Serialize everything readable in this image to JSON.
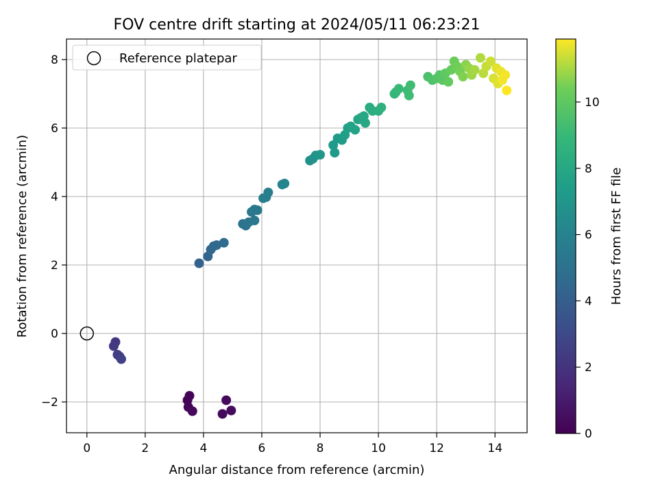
{
  "chart_data": {
    "type": "scatter",
    "title": "FOV centre drift starting at 2024/05/11 06:23:21",
    "xlabel": "Angular distance from reference (arcmin)",
    "ylabel": "Rotation from reference (arcmin)",
    "xlim": [
      -0.7,
      15.1
    ],
    "ylim": [
      -2.9,
      8.6
    ],
    "x_ticks": [
      0,
      2,
      4,
      6,
      8,
      10,
      12,
      14
    ],
    "y_ticks": [
      -2,
      0,
      2,
      4,
      6,
      8
    ],
    "grid": true,
    "legend": {
      "position": "top-left",
      "entries": [
        "Reference platepar"
      ]
    },
    "reference_point": {
      "x": 0,
      "y": 0,
      "label": "Reference platepar",
      "marker": "open-circle"
    },
    "colorbar": {
      "label": "Hours from first FF file",
      "range": [
        0,
        11.9
      ],
      "ticks": [
        0,
        2,
        4,
        6,
        8,
        10
      ],
      "colormap": "viridis"
    },
    "points": [
      {
        "x": 3.45,
        "y": -1.95,
        "c": 0.1
      },
      {
        "x": 3.52,
        "y": -1.82,
        "c": 0.15
      },
      {
        "x": 3.48,
        "y": -2.15,
        "c": 0.2
      },
      {
        "x": 3.62,
        "y": -2.27,
        "c": 0.25
      },
      {
        "x": 4.65,
        "y": -2.35,
        "c": 0.3
      },
      {
        "x": 4.78,
        "y": -1.95,
        "c": 0.35
      },
      {
        "x": 4.95,
        "y": -2.25,
        "c": 0.4
      },
      {
        "x": 0.98,
        "y": -0.25,
        "c": 2.2
      },
      {
        "x": 0.92,
        "y": -0.37,
        "c": 2.3
      },
      {
        "x": 1.05,
        "y": -0.62,
        "c": 2.4
      },
      {
        "x": 1.12,
        "y": -0.67,
        "c": 2.5
      },
      {
        "x": 1.18,
        "y": -0.75,
        "c": 2.6
      },
      {
        "x": 3.85,
        "y": 2.05,
        "c": 4.2
      },
      {
        "x": 4.15,
        "y": 2.25,
        "c": 4.3
      },
      {
        "x": 4.25,
        "y": 2.45,
        "c": 4.4
      },
      {
        "x": 4.35,
        "y": 2.55,
        "c": 4.5
      },
      {
        "x": 4.45,
        "y": 2.58,
        "c": 4.6
      },
      {
        "x": 4.7,
        "y": 2.65,
        "c": 4.7
      },
      {
        "x": 5.35,
        "y": 3.2,
        "c": 5.0
      },
      {
        "x": 5.45,
        "y": 3.15,
        "c": 5.1
      },
      {
        "x": 5.55,
        "y": 3.25,
        "c": 5.2
      },
      {
        "x": 5.75,
        "y": 3.3,
        "c": 5.3
      },
      {
        "x": 5.65,
        "y": 3.55,
        "c": 5.3
      },
      {
        "x": 5.75,
        "y": 3.62,
        "c": 5.4
      },
      {
        "x": 5.85,
        "y": 3.6,
        "c": 5.4
      },
      {
        "x": 6.05,
        "y": 3.95,
        "c": 5.6
      },
      {
        "x": 6.15,
        "y": 3.98,
        "c": 5.7
      },
      {
        "x": 6.22,
        "y": 4.12,
        "c": 5.8
      },
      {
        "x": 6.7,
        "y": 4.35,
        "c": 6.0
      },
      {
        "x": 6.78,
        "y": 4.38,
        "c": 6.1
      },
      {
        "x": 7.65,
        "y": 5.05,
        "c": 6.7
      },
      {
        "x": 7.75,
        "y": 5.1,
        "c": 6.8
      },
      {
        "x": 7.85,
        "y": 5.2,
        "c": 6.9
      },
      {
        "x": 8.0,
        "y": 5.22,
        "c": 7.0
      },
      {
        "x": 8.45,
        "y": 5.5,
        "c": 7.2
      },
      {
        "x": 8.5,
        "y": 5.28,
        "c": 7.2
      },
      {
        "x": 8.6,
        "y": 5.7,
        "c": 7.3
      },
      {
        "x": 8.75,
        "y": 5.65,
        "c": 7.4
      },
      {
        "x": 8.85,
        "y": 5.8,
        "c": 7.5
      },
      {
        "x": 8.95,
        "y": 6.0,
        "c": 7.6
      },
      {
        "x": 9.05,
        "y": 6.05,
        "c": 7.7
      },
      {
        "x": 9.2,
        "y": 5.95,
        "c": 7.7
      },
      {
        "x": 9.3,
        "y": 6.25,
        "c": 7.8
      },
      {
        "x": 9.4,
        "y": 6.3,
        "c": 7.9
      },
      {
        "x": 9.5,
        "y": 6.35,
        "c": 8.0
      },
      {
        "x": 9.55,
        "y": 6.15,
        "c": 8.0
      },
      {
        "x": 9.7,
        "y": 6.6,
        "c": 8.2
      },
      {
        "x": 9.8,
        "y": 6.5,
        "c": 8.3
      },
      {
        "x": 10.0,
        "y": 6.5,
        "c": 8.4
      },
      {
        "x": 10.1,
        "y": 6.6,
        "c": 8.5
      },
      {
        "x": 10.55,
        "y": 7.0,
        "c": 8.8
      },
      {
        "x": 10.6,
        "y": 7.05,
        "c": 8.9
      },
      {
        "x": 10.7,
        "y": 7.15,
        "c": 9.0
      },
      {
        "x": 11.0,
        "y": 7.1,
        "c": 9.1
      },
      {
        "x": 11.05,
        "y": 6.95,
        "c": 9.2
      },
      {
        "x": 11.1,
        "y": 7.25,
        "c": 9.2
      },
      {
        "x": 11.7,
        "y": 7.5,
        "c": 9.5
      },
      {
        "x": 11.85,
        "y": 7.4,
        "c": 9.6
      },
      {
        "x": 12.0,
        "y": 7.45,
        "c": 9.7
      },
      {
        "x": 12.1,
        "y": 7.55,
        "c": 9.8
      },
      {
        "x": 12.2,
        "y": 7.4,
        "c": 9.9
      },
      {
        "x": 12.3,
        "y": 7.6,
        "c": 10.0
      },
      {
        "x": 12.4,
        "y": 7.35,
        "c": 10.1
      },
      {
        "x": 12.5,
        "y": 7.7,
        "c": 10.2
      },
      {
        "x": 12.6,
        "y": 7.95,
        "c": 10.3
      },
      {
        "x": 12.7,
        "y": 7.8,
        "c": 10.4
      },
      {
        "x": 12.8,
        "y": 7.65,
        "c": 10.5
      },
      {
        "x": 12.9,
        "y": 7.5,
        "c": 10.6
      },
      {
        "x": 13.0,
        "y": 7.85,
        "c": 10.7
      },
      {
        "x": 13.1,
        "y": 7.75,
        "c": 10.8
      },
      {
        "x": 13.2,
        "y": 7.55,
        "c": 10.9
      },
      {
        "x": 13.3,
        "y": 7.7,
        "c": 11.0
      },
      {
        "x": 13.5,
        "y": 8.05,
        "c": 11.1
      },
      {
        "x": 13.6,
        "y": 7.6,
        "c": 11.2
      },
      {
        "x": 13.7,
        "y": 7.8,
        "c": 11.3
      },
      {
        "x": 13.85,
        "y": 7.95,
        "c": 11.4
      },
      {
        "x": 13.95,
        "y": 7.45,
        "c": 11.5
      },
      {
        "x": 14.05,
        "y": 7.75,
        "c": 11.6
      },
      {
        "x": 14.1,
        "y": 7.3,
        "c": 11.6
      },
      {
        "x": 14.2,
        "y": 7.65,
        "c": 11.7
      },
      {
        "x": 14.25,
        "y": 7.4,
        "c": 11.8
      },
      {
        "x": 14.35,
        "y": 7.55,
        "c": 11.8
      },
      {
        "x": 14.4,
        "y": 7.1,
        "c": 11.9
      }
    ]
  }
}
